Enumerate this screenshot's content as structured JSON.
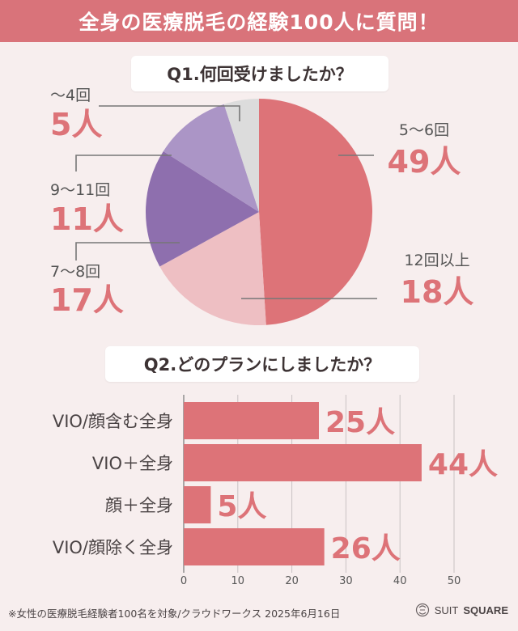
{
  "header": {
    "title": "全身の医療脱毛の経験100人に質問！"
  },
  "q1": {
    "question": "Q1.何回受けましたか？"
  },
  "q2": {
    "question": "Q2.どのプランにしましたか？"
  },
  "chart_data": [
    {
      "type": "pie",
      "slices": [
        {
          "label": "5〜6回",
          "value": 49,
          "value_text": "49人",
          "color": "#dd7378"
        },
        {
          "label": "12回以上",
          "value": 18,
          "value_text": "18人",
          "color": "#eebfc3"
        },
        {
          "label": "7〜8回",
          "value": 17,
          "value_text": "17人",
          "color": "#8e6fae"
        },
        {
          "label": "9〜11回",
          "value": 11,
          "value_text": "11人",
          "color": "#ab95c6"
        },
        {
          "label": "〜4回",
          "value": 5,
          "value_text": "5人",
          "color": "#dcdcdc"
        }
      ]
    },
    {
      "type": "bar",
      "orientation": "horizontal",
      "categories": [
        "VIO/顔含む全身",
        "VIO＋全身",
        "顔＋全身",
        "VIO/顔除く全身"
      ],
      "values": [
        25,
        44,
        5,
        26
      ],
      "value_labels": [
        "25人",
        "44人",
        "5人",
        "26人"
      ],
      "xlim": [
        0,
        50
      ],
      "xticks": [
        0,
        10,
        20,
        30,
        40,
        50
      ],
      "grid": true,
      "color": "#dd7378"
    }
  ],
  "footer": {
    "note": "※女性の医療脱毛経験者100名を対象/クラウドワークス 2025年6月16日",
    "brand_light": "SUIT",
    "brand_bold": "SQUARE"
  }
}
